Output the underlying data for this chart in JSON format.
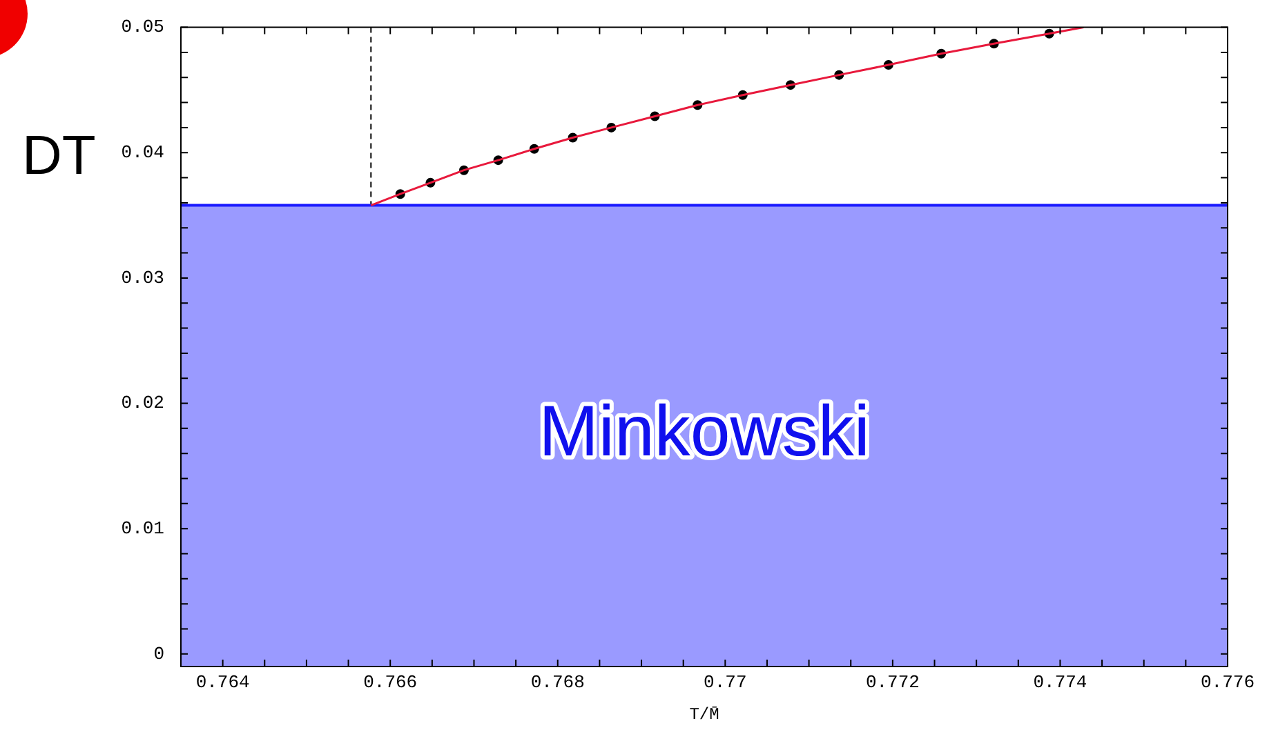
{
  "chart_data": {
    "type": "line",
    "xlabel": "T/M̄",
    "annotations": [
      "DT"
    ],
    "xlim": [
      0.7635,
      0.776
    ],
    "xticks": [
      {
        "value": 0.7635,
        "label": null
      },
      0.764,
      {
        "value": 0.7645,
        "label": null
      },
      {
        "value": 0.765,
        "label": null
      },
      {
        "value": 0.7655,
        "label": null
      },
      0.766,
      {
        "value": 0.7665,
        "label": null
      },
      {
        "value": 0.767,
        "label": null
      },
      {
        "value": 0.7675,
        "label": null
      },
      0.768,
      {
        "value": 0.7685,
        "label": null
      },
      {
        "value": 0.769,
        "label": null
      },
      {
        "value": 0.7695,
        "label": null
      },
      0.77,
      {
        "value": 0.7705,
        "label": null
      },
      {
        "value": 0.771,
        "label": null
      },
      {
        "value": 0.7715,
        "label": null
      },
      0.772,
      {
        "value": 0.7725,
        "label": null
      },
      {
        "value": 0.773,
        "label": null
      },
      {
        "value": 0.7735,
        "label": null
      },
      0.774,
      {
        "value": 0.7745,
        "label": null
      },
      {
        "value": 0.775,
        "label": null
      },
      {
        "value": 0.7755,
        "label": null
      },
      0.776
    ],
    "ylim": [
      -0.001,
      0.05
    ],
    "yticks": [
      0,
      {
        "value": 0.002,
        "label": null
      },
      {
        "value": 0.004,
        "label": null
      },
      {
        "value": 0.006,
        "label": null
      },
      {
        "value": 0.008,
        "label": null
      },
      0.01,
      {
        "value": 0.012,
        "label": null
      },
      {
        "value": 0.014,
        "label": null
      },
      {
        "value": 0.016,
        "label": null
      },
      {
        "value": 0.018,
        "label": null
      },
      0.02,
      {
        "value": 0.022,
        "label": null
      },
      {
        "value": 0.024,
        "label": null
      },
      {
        "value": 0.026,
        "label": null
      },
      {
        "value": 0.028,
        "label": null
      },
      0.03,
      {
        "value": 0.032,
        "label": null
      },
      {
        "value": 0.034,
        "label": null
      },
      {
        "value": 0.036,
        "label": null
      },
      {
        "value": 0.038,
        "label": null
      },
      0.04,
      {
        "value": 0.042,
        "label": null
      },
      {
        "value": 0.044,
        "label": null
      },
      {
        "value": 0.046,
        "label": null
      },
      {
        "value": 0.048,
        "label": null
      },
      0.05
    ],
    "grid": false,
    "legend": false,
    "bands": [
      {
        "axis": "y",
        "from": -0.001,
        "to": 0.0358,
        "label": "Minkowski",
        "color": "#9a9aff"
      }
    ],
    "ref_lines": [
      {
        "axis": "x",
        "value": 0.76577,
        "color": "#333333",
        "line_style": "dashed"
      },
      {
        "axis": "y",
        "value": 0.0358,
        "color": "#1a1aff",
        "line_style": "solid"
      }
    ],
    "series": [
      {
        "type": "line",
        "color": "#e8193c",
        "marker": "none",
        "line_style": "solid",
        "x": [
          0.76577,
          0.76612,
          0.76648,
          0.76688,
          0.76729,
          0.76772,
          0.76818,
          0.76864,
          0.76916,
          0.76967,
          0.77021,
          0.77078,
          0.77136,
          0.77195,
          0.77258,
          0.77321,
          0.77387,
          0.77428
        ],
        "values": [
          0.0358,
          0.0367,
          0.0376,
          0.0386,
          0.0394,
          0.0403,
          0.0412,
          0.042,
          0.0429,
          0.0438,
          0.0446,
          0.0454,
          0.0462,
          0.047,
          0.0479,
          0.0487,
          0.0495,
          0.05
        ]
      },
      {
        "type": "scatter",
        "color": "#000000",
        "marker": "circle",
        "x": [
          0.76612,
          0.76648,
          0.76688,
          0.76729,
          0.76772,
          0.76818,
          0.76864,
          0.76916,
          0.76967,
          0.77021,
          0.77078,
          0.77136,
          0.77195,
          0.77258,
          0.77321,
          0.77387
        ],
        "values": [
          0.0367,
          0.0376,
          0.0386,
          0.0394,
          0.0403,
          0.0412,
          0.042,
          0.0429,
          0.0438,
          0.0446,
          0.0454,
          0.0462,
          0.047,
          0.0479,
          0.0487,
          0.0495
        ]
      }
    ]
  }
}
